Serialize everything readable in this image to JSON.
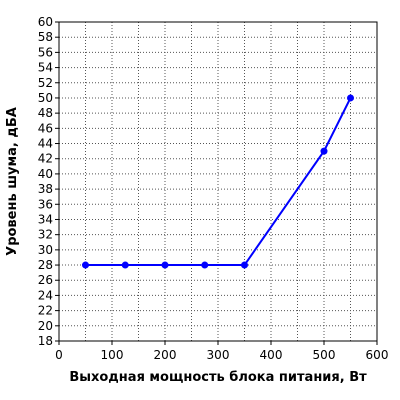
{
  "chart_data": {
    "type": "line",
    "xlabel": "Выходная мощность блока питания, Вт",
    "ylabel": "Уровень шума, дБА",
    "xlim": [
      0,
      600
    ],
    "ylim": [
      18,
      60
    ],
    "x_ticks": [
      "0",
      "100",
      "200",
      "300",
      "400",
      "500",
      "600"
    ],
    "y_ticks": [
      "18",
      "20",
      "22",
      "24",
      "26",
      "28",
      "30",
      "32",
      "34",
      "36",
      "38",
      "40",
      "42",
      "44",
      "46",
      "48",
      "50",
      "52",
      "54",
      "56",
      "58",
      "60"
    ],
    "grid": true,
    "series": [
      {
        "color": "#0000ff",
        "points": [
          {
            "x": 50,
            "y": 28
          },
          {
            "x": 125,
            "y": 28
          },
          {
            "x": 200,
            "y": 28
          },
          {
            "x": 275,
            "y": 28
          },
          {
            "x": 350,
            "y": 28
          },
          {
            "x": 500,
            "y": 43
          },
          {
            "x": 550,
            "y": 50
          }
        ]
      }
    ]
  }
}
